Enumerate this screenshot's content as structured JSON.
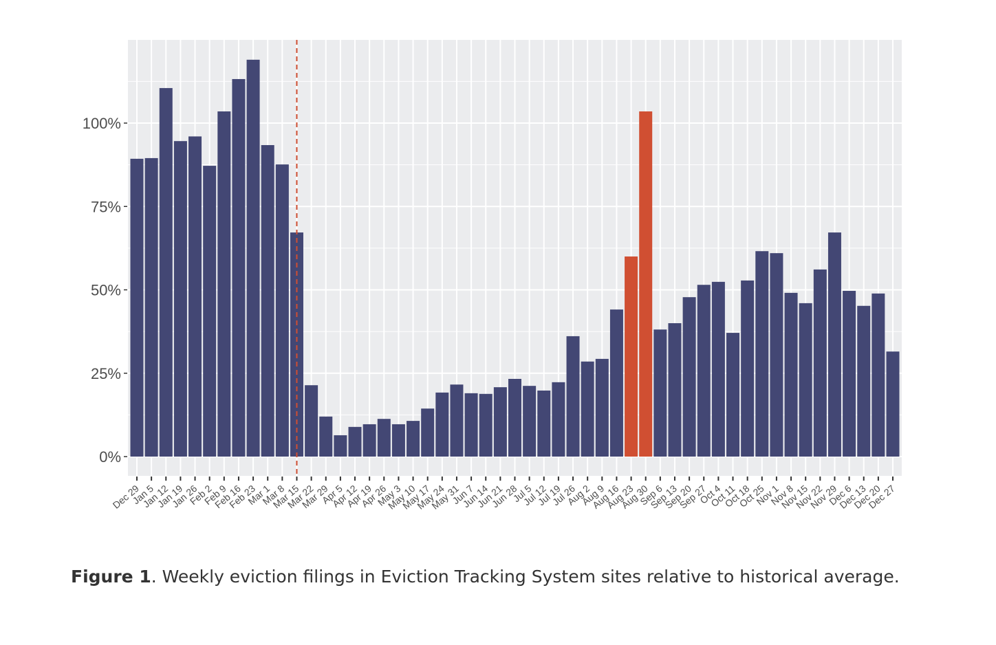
{
  "chart_data": {
    "type": "bar",
    "title": "",
    "xlabel": "",
    "ylabel": "",
    "ylim": [
      -6,
      125
    ],
    "yticks": [
      0,
      25,
      50,
      75,
      100
    ],
    "ytick_labels": [
      "0%",
      "25%",
      "50%",
      "75%",
      "100%"
    ],
    "grid": true,
    "categories": [
      "Dec 29",
      "Jan 5",
      "Jan 12",
      "Jan 19",
      "Jan 26",
      "Feb 2",
      "Feb 9",
      "Feb 16",
      "Feb 23",
      "Mar 1",
      "Mar 8",
      "Mar 15",
      "Mar 22",
      "Mar 29",
      "Apr 5",
      "Apr 12",
      "Apr 19",
      "Apr 26",
      "May 3",
      "May 10",
      "May 17",
      "May 24",
      "May 31",
      "Jun 7",
      "Jun 14",
      "Jun 21",
      "Jun 28",
      "Jul 5",
      "Jul 12",
      "Jul 19",
      "Jul 26",
      "Aug 2",
      "Aug 9",
      "Aug 16",
      "Aug 23",
      "Aug 30",
      "Sep 6",
      "Sep 13",
      "Sep 20",
      "Sep 27",
      "Oct 4",
      "Oct 11",
      "Oct 18",
      "Oct 25",
      "Nov 1",
      "Nov 8",
      "Nov 15",
      "Nov 22",
      "Nov 29",
      "Dec 6",
      "Dec 13",
      "Dec 20",
      "Dec 27"
    ],
    "values": [
      89.3,
      89.5,
      110.5,
      94.6,
      96,
      87.2,
      103.5,
      113.2,
      119,
      93.4,
      87.6,
      67.2,
      21.4,
      12,
      6.4,
      8.9,
      9.7,
      11.3,
      9.7,
      10.7,
      14.4,
      19.2,
      21.6,
      19,
      18.8,
      20.8,
      23.3,
      21.2,
      19.8,
      22.3,
      36.1,
      28.5,
      29.3,
      44.1,
      60,
      103.5,
      38.1,
      40,
      47.8,
      51.5,
      52.4,
      37.1,
      52.8,
      61.6,
      61,
      49.1,
      46,
      56.1,
      67.2,
      49.7,
      45.2,
      48.9,
      31.5
    ],
    "highlighted": [
      "Aug 23",
      "Aug 30"
    ],
    "reference_line": {
      "category": "Mar 15",
      "style": "dashed"
    },
    "colors": {
      "bar": "#434774",
      "highlight": "#d04f32",
      "reference": "#d04f32",
      "panel": "#ebecee",
      "grid": "#ffffff"
    }
  },
  "caption": {
    "label": "Figure 1",
    "text": ". Weekly eviction filings in Eviction Tracking System sites relative to historical average."
  }
}
